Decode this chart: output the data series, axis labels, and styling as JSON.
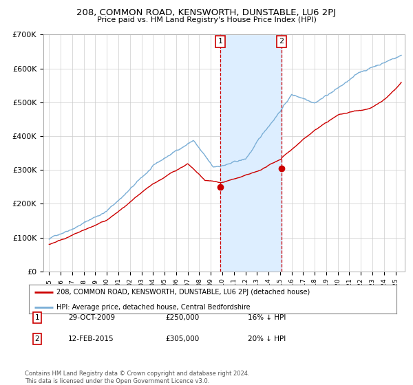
{
  "title": "208, COMMON ROAD, KENSWORTH, DUNSTABLE, LU6 2PJ",
  "subtitle": "Price paid vs. HM Land Registry's House Price Index (HPI)",
  "legend_line1": "208, COMMON ROAD, KENSWORTH, DUNSTABLE, LU6 2PJ (detached house)",
  "legend_line2": "HPI: Average price, detached house, Central Bedfordshire",
  "annotation1_label": "1",
  "annotation1_date": "29-OCT-2009",
  "annotation1_price": "£250,000",
  "annotation1_hpi": "16% ↓ HPI",
  "annotation2_label": "2",
  "annotation2_date": "12-FEB-2015",
  "annotation2_price": "£305,000",
  "annotation2_hpi": "20% ↓ HPI",
  "footer": "Contains HM Land Registry data © Crown copyright and database right 2024.\nThis data is licensed under the Open Government Licence v3.0.",
  "red_color": "#cc0000",
  "blue_color": "#7aaed6",
  "shade_color": "#ddeeff",
  "vline_color": "#cc0000",
  "sale1_x": 2009.83,
  "sale1_y": 250000,
  "sale2_x": 2015.12,
  "sale2_y": 305000,
  "ylim": [
    0,
    700000
  ],
  "xlim_start": 1994.5,
  "xlim_end": 2025.8,
  "ylabel_ticks": [
    0,
    100000,
    200000,
    300000,
    400000,
    500000,
    600000,
    700000
  ],
  "ylabel_labels": [
    "£0",
    "£100K",
    "£200K",
    "£300K",
    "£400K",
    "£500K",
    "£600K",
    "£700K"
  ]
}
